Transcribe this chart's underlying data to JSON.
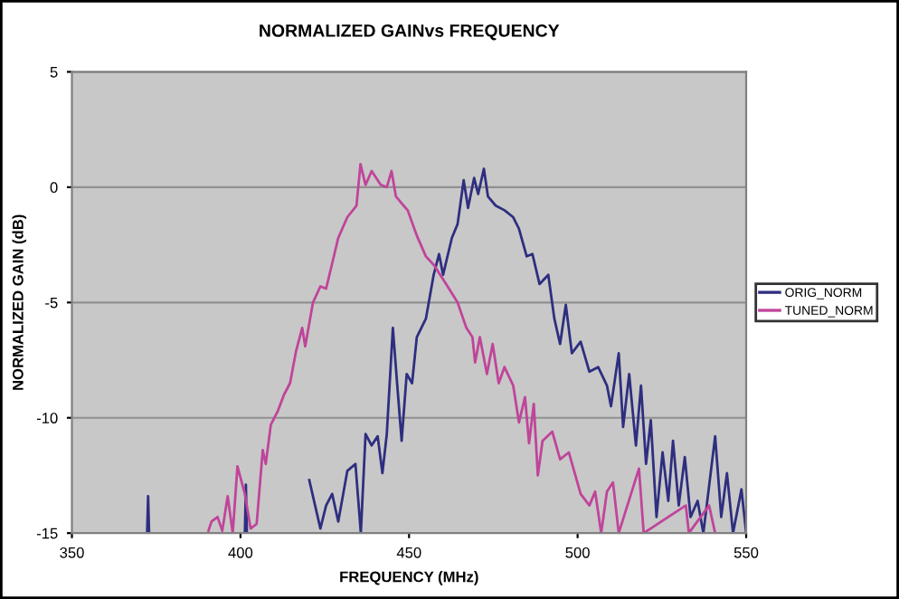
{
  "chart_data": {
    "type": "line",
    "title": "NORMALIZED GAINvs FREQUENCY",
    "xlabel": "FREQUENCY (MHz)",
    "ylabel": "NORMALIZED GAIN (dB)",
    "xlim": [
      350,
      550
    ],
    "ylim": [
      -15,
      5
    ],
    "xticks": [
      350,
      400,
      450,
      500,
      550
    ],
    "yticks": [
      -15,
      -10,
      -5,
      0,
      5
    ],
    "grid": "y",
    "legend": "right",
    "marker": "none",
    "line_style": "solid",
    "series": [
      {
        "name": "ORIG_NORM",
        "color": "#2e2e80",
        "x": [
          372.3,
          372.6,
          372.9,
          380,
          401.3,
          401.6,
          401.9,
          410,
          420.4,
          423.7,
          425.4,
          427.2,
          429,
          431.7,
          434.1,
          435.7,
          437.1,
          438.9,
          440.7,
          442.1,
          443.4,
          445.2,
          446.4,
          447.8,
          449.3,
          450.9,
          452.3,
          455,
          457.3,
          458.9,
          460.1,
          462.7,
          464.4,
          466.2,
          467.5,
          469.3,
          470.5,
          472.2,
          473.4,
          475.7,
          478.3,
          480.9,
          482.6,
          484.9,
          486.6,
          488.7,
          491.3,
          493.1,
          494.8,
          496.5,
          498.3,
          500.9,
          503.5,
          506.1,
          508.7,
          509.9,
          512.2,
          513.5,
          515.3,
          517.3,
          518.8,
          520.3,
          521.7,
          523.4,
          525.2,
          526.9,
          528.3,
          530,
          531.8,
          533.5,
          535.6,
          537.3,
          540.8,
          542.6,
          544.3,
          546.1,
          548.6,
          550
        ],
        "values": [
          -15,
          -13.4,
          -15,
          null,
          -15,
          -12.9,
          -15,
          null,
          -12.7,
          -14.8,
          -13.8,
          -13.3,
          -14.5,
          -12.3,
          -12,
          -15,
          -10.7,
          -11.2,
          -10.8,
          -12.4,
          -10.7,
          -6.1,
          -8.4,
          -11,
          -8.1,
          -8.5,
          -6.5,
          -5.7,
          -3.8,
          -2.9,
          -3.8,
          -2.2,
          -1.6,
          0.3,
          -0.9,
          0.4,
          -0.3,
          0.8,
          -0.4,
          -0.8,
          -1,
          -1.3,
          -1.8,
          -3,
          -2.9,
          -4.2,
          -3.8,
          -5.7,
          -6.8,
          -5.1,
          -7.2,
          -6.7,
          -8,
          -7.8,
          -8.6,
          -9.5,
          -7.2,
          -10.4,
          -8.1,
          -11.2,
          -8.6,
          -12,
          -10.1,
          -14.3,
          -11.5,
          -13.6,
          -11,
          -13.8,
          -11.7,
          -14.3,
          -13.6,
          -15,
          -10.8,
          -14.3,
          -12.4,
          -15,
          -13.1,
          -15
        ]
      },
      {
        "name": "TUNED_NORM",
        "color": "#c0449a",
        "x": [
          390.5,
          391.4,
          393.2,
          394.6,
          396.2,
          397.7,
          399.1,
          401.3,
          403,
          404.8,
          406.6,
          407.5,
          409,
          411.1,
          412.9,
          414.7,
          416.5,
          418.3,
          419.2,
          421.5,
          423.7,
          425.4,
          427.2,
          429,
          431.7,
          434.4,
          435.6,
          437.1,
          438.9,
          441.6,
          443.4,
          444.8,
          446.1,
          447.8,
          449.6,
          452.3,
          455,
          457.5,
          461,
          464.4,
          467,
          468.8,
          469.6,
          471,
          473.1,
          474.8,
          476.6,
          478.3,
          480.9,
          482.6,
          484.4,
          485.6,
          487,
          488.2,
          489.6,
          492.5,
          494.8,
          497.4,
          500.9,
          503.5,
          505.2,
          507,
          508.7,
          510.5,
          512.2,
          518.2,
          519.6,
          532.1,
          533,
          539,
          540.8
        ],
        "values": [
          -14.9,
          -14.5,
          -14.3,
          -14.9,
          -13.4,
          -15,
          -12.1,
          -13.3,
          -14.8,
          -14.6,
          -11.4,
          -12,
          -10.3,
          -9.7,
          -9,
          -8.5,
          -7.1,
          -6.1,
          -6.9,
          -5,
          -4.3,
          -4.4,
          -3.3,
          -2.2,
          -1.3,
          -0.8,
          1,
          0.1,
          0.7,
          0.1,
          0,
          0.7,
          -0.4,
          -0.7,
          -1,
          -2.1,
          -3,
          -3.4,
          -4.2,
          -5,
          -6.1,
          -6.5,
          -7.6,
          -6.5,
          -8.1,
          -6.8,
          -8.5,
          -7.8,
          -8.6,
          -10.2,
          -9.1,
          -11.1,
          -9.4,
          -12.5,
          -11,
          -10.6,
          -11.8,
          -11.5,
          -13.3,
          -13.8,
          -13.2,
          -15,
          -13.2,
          -12.8,
          -15,
          -12.2,
          -15,
          -13.8,
          -15,
          -13.8,
          -15
        ]
      }
    ]
  }
}
